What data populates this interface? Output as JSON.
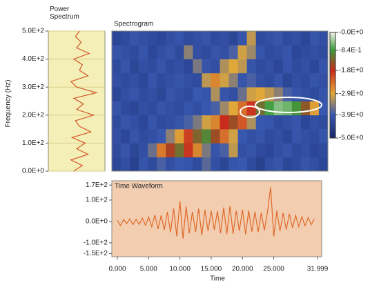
{
  "chart_data": [
    {
      "type": "line",
      "orientation": "horizontal",
      "title": "Power Spectrum",
      "x_label": "Frequency (Hz)",
      "color": "#d2562a",
      "background": "#f4efb6",
      "x": [
        0,
        20,
        40,
        60,
        80,
        100,
        120,
        140,
        160,
        180,
        200,
        220,
        240,
        260,
        280,
        300,
        320,
        340,
        360,
        380,
        400,
        420,
        440,
        460,
        480,
        500
      ],
      "values": [
        0.45,
        0.6,
        0.4,
        0.7,
        0.5,
        0.65,
        0.42,
        0.75,
        0.55,
        0.48,
        0.8,
        0.5,
        0.62,
        0.45,
        0.85,
        0.5,
        0.4,
        0.7,
        0.55,
        0.6,
        0.45,
        0.72,
        0.5,
        0.58,
        0.48,
        0.55
      ],
      "xlim": [
        0,
        500
      ],
      "xticks": [
        {
          "value": 0,
          "label": "0.0E+0"
        },
        {
          "value": 100,
          "label": "1.0E+2"
        },
        {
          "value": 200,
          "label": "2.0E+2"
        },
        {
          "value": 300,
          "label": "3.0E+2"
        },
        {
          "value": 400,
          "label": "4.0E+2"
        },
        {
          "value": 500,
          "label": "5.0E+2"
        }
      ],
      "ylim": [
        0,
        1
      ],
      "grid": true
    },
    {
      "type": "heatmap",
      "title": "Spectrogram",
      "xlim": [
        0,
        32
      ],
      "ylim": [
        0,
        500
      ],
      "clim": [
        -5,
        0
      ],
      "colors": [
        "#eef4e6",
        "#3c9a3c",
        "#c82a1c",
        "#e0a838",
        "#3858b0",
        "#18286a"
      ],
      "cticks": [
        {
          "value": 0,
          "label": "-0.0E+0"
        },
        {
          "value": -0.84,
          "label": "-8.4E-1"
        },
        {
          "value": -1.8,
          "label": "-1.8E+0"
        },
        {
          "value": -2.9,
          "label": "-2.9E+0"
        },
        {
          "value": -3.9,
          "label": "-3.9E+0"
        },
        {
          "value": -5,
          "label": "-5.0E+0"
        }
      ],
      "values": [
        [
          -4.3,
          -4.1,
          -4.4,
          -4.0,
          -4.2,
          -3.8,
          -4.1,
          -3.9,
          -4.0,
          -4.2,
          -3.7,
          -4.1,
          -4.3,
          -4.0,
          -3.9,
          -4.2,
          -4.4,
          -4.1,
          -4.0,
          -4.3,
          -4.2,
          -4.0,
          -4.1,
          -4.3
        ],
        [
          -4.2,
          -4.0,
          -4.3,
          -4.1,
          -3.6,
          -2.5,
          -1.6,
          -1.2,
          -1.9,
          -2.6,
          -3.5,
          -4.0,
          -3.8,
          -3.1,
          -4.1,
          -4.0,
          -4.2,
          -4.3,
          -4.1,
          -4.0,
          -4.2,
          -4.1,
          -4.3,
          -4.2
        ],
        [
          -4.1,
          -4.3,
          -4.0,
          -4.2,
          -4.1,
          -3.9,
          -3.4,
          -2.8,
          -2.0,
          -1.3,
          -1.0,
          -1.5,
          -2.4,
          -3.0,
          -3.9,
          -4.1,
          -4.0,
          -4.2,
          -4.1,
          -4.3,
          -4.0,
          -4.1,
          -4.2,
          -4.0
        ],
        [
          -4.2,
          -4.0,
          -4.1,
          -4.3,
          -4.0,
          -4.2,
          -4.1,
          -4.0,
          -3.8,
          -3.5,
          -3.0,
          -2.6,
          -1.8,
          -1.5,
          -2.2,
          -3.2,
          -3.9,
          -4.0,
          -4.2,
          -4.1,
          -4.0,
          -4.3,
          -4.1,
          -4.2
        ],
        [
          -4.0,
          -4.2,
          -4.3,
          -4.1,
          -4.2,
          -4.0,
          -4.1,
          -4.2,
          -4.0,
          -4.1,
          -3.9,
          -3.8,
          -3.3,
          -2.9,
          -2.4,
          -1.9,
          -1.2,
          -0.8,
          -0.5,
          -0.6,
          -0.9,
          -1.4,
          -2.8,
          -3.9
        ],
        [
          -4.3,
          -4.1,
          -4.0,
          -4.2,
          -4.1,
          -4.3,
          -4.0,
          -4.1,
          -4.2,
          -3.9,
          -4.0,
          -3.2,
          -4.0,
          -4.1,
          -3.6,
          -3.0,
          -2.9,
          -3.1,
          -3.4,
          -3.8,
          -4.0,
          -4.1,
          -4.2,
          -4.0
        ],
        [
          -4.1,
          -4.2,
          -4.1,
          -4.3,
          -4.0,
          -4.2,
          -4.1,
          -4.0,
          -4.1,
          -4.2,
          -3.1,
          -2.6,
          -3.0,
          -3.4,
          -4.0,
          -3.8,
          -4.1,
          -4.2,
          -4.0,
          -4.3,
          -4.1,
          -4.2,
          -4.0,
          -4.1
        ],
        [
          -4.2,
          -4.0,
          -4.3,
          -4.1,
          -4.2,
          -4.0,
          -4.2,
          -4.1,
          -4.3,
          -3.5,
          -4.0,
          -4.1,
          -3.2,
          -2.9,
          -3.1,
          -4.0,
          -4.2,
          -4.1,
          -4.3,
          -4.0,
          -4.2,
          -4.1,
          -4.3,
          -4.0
        ],
        [
          -4.0,
          -4.1,
          -4.2,
          -4.0,
          -4.3,
          -4.1,
          -4.0,
          -4.2,
          -3.4,
          -4.1,
          -4.2,
          -4.0,
          -4.1,
          -3.8,
          -3.0,
          -3.3,
          -4.0,
          -4.2,
          -4.1,
          -4.0,
          -4.3,
          -4.2,
          -4.1,
          -4.2
        ],
        [
          -4.3,
          -4.2,
          -4.0,
          -4.1,
          -4.2,
          -4.3,
          -4.1,
          -4.0,
          -4.2,
          -4.1,
          -4.0,
          -4.2,
          -4.1,
          -4.3,
          -4.0,
          -3.1,
          -4.2,
          -4.1,
          -4.0,
          -4.2,
          -4.1,
          -4.3,
          -4.0,
          -4.1
        ]
      ]
    },
    {
      "type": "line",
      "title": "Time Waveform",
      "x_label": "Time",
      "color": "#e0692a",
      "background": "#f2cdb0",
      "x": [
        0,
        0.5,
        1,
        1.5,
        2,
        2.5,
        3,
        3.5,
        4,
        4.5,
        5,
        5.5,
        6,
        6.5,
        7,
        7.5,
        8,
        8.5,
        9,
        9.5,
        10,
        10.5,
        11,
        11.5,
        12,
        12.5,
        13,
        13.5,
        14,
        14.5,
        15,
        15.5,
        16,
        16.5,
        17,
        17.5,
        18,
        18.5,
        19,
        19.5,
        20,
        20.5,
        21,
        21.5,
        22,
        22.5,
        23,
        23.5,
        24,
        24.5,
        25,
        25.5,
        26,
        26.5,
        27,
        27.5,
        28,
        28.5,
        29,
        29.5,
        30,
        30.5,
        31,
        31.5
      ],
      "values": [
        5,
        -20,
        8,
        -10,
        12,
        -15,
        10,
        -14,
        16,
        -18,
        20,
        -25,
        30,
        -35,
        28,
        -40,
        45,
        -50,
        60,
        -70,
        95,
        -80,
        70,
        -55,
        45,
        -50,
        60,
        -65,
        55,
        -45,
        50,
        -40,
        48,
        -55,
        65,
        -60,
        72,
        -58,
        50,
        -45,
        55,
        -60,
        50,
        -48,
        45,
        -50,
        40,
        -42,
        45,
        160,
        -70,
        50,
        -45,
        40,
        -38,
        35,
        -30,
        28,
        -25,
        22,
        -20,
        18,
        -15,
        12
      ],
      "xlim": [
        0,
        32
      ],
      "xticks": [
        {
          "value": 0,
          "label": "0.000"
        },
        {
          "value": 5,
          "label": "5.000"
        },
        {
          "value": 10,
          "label": "10.000"
        },
        {
          "value": 15,
          "label": "15.000"
        },
        {
          "value": 20,
          "label": "20.000"
        },
        {
          "value": 25,
          "label": "25.000"
        },
        {
          "value": 31.999,
          "label": "31.999"
        }
      ],
      "ylim": [
        -165,
        190
      ],
      "yticks": [
        {
          "value": 170,
          "label": "1.7E+2"
        },
        {
          "value": 100,
          "label": "1.0E+2"
        },
        {
          "value": 0,
          "label": "0.0E+0"
        },
        {
          "value": -100,
          "label": "-1.0E+2"
        },
        {
          "value": -150,
          "label": "-1.5E+2"
        }
      ]
    }
  ]
}
